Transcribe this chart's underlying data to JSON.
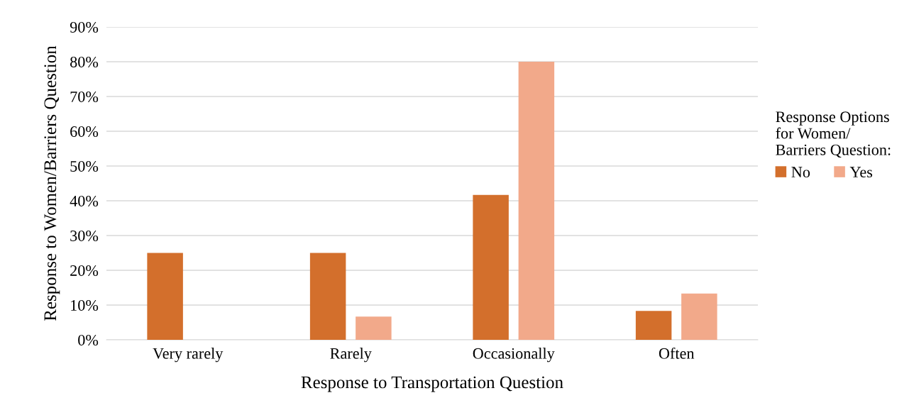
{
  "chart_data": {
    "type": "bar",
    "xlabel": "Response to Transportation Question",
    "ylabel": "Response to Women/Barriers Question",
    "legend_title": "Response Options\nfor Women/\nBarriers Question:",
    "categories": [
      "Very rarely",
      "Rarely",
      "Occasionally",
      "Often"
    ],
    "series": [
      {
        "name": "No",
        "color": "#d36f2c",
        "values": [
          25,
          25,
          41.7,
          8.3
        ]
      },
      {
        "name": "Yes",
        "color": "#f2a98a",
        "values": [
          0,
          6.7,
          80,
          13.3
        ]
      }
    ],
    "ylim": [
      0,
      90
    ],
    "yticks": [
      {
        "value": 0,
        "label": "0%"
      },
      {
        "value": 10,
        "label": "10%"
      },
      {
        "value": 20,
        "label": "20%"
      },
      {
        "value": 30,
        "label": "30%"
      },
      {
        "value": 40,
        "label": "40%"
      },
      {
        "value": 50,
        "label": "50%"
      },
      {
        "value": 60,
        "label": "60%"
      },
      {
        "value": 70,
        "label": "70%"
      },
      {
        "value": 80,
        "label": "80%"
      },
      {
        "value": 90,
        "label": "90%"
      }
    ],
    "grid": "y",
    "legend": "right"
  }
}
